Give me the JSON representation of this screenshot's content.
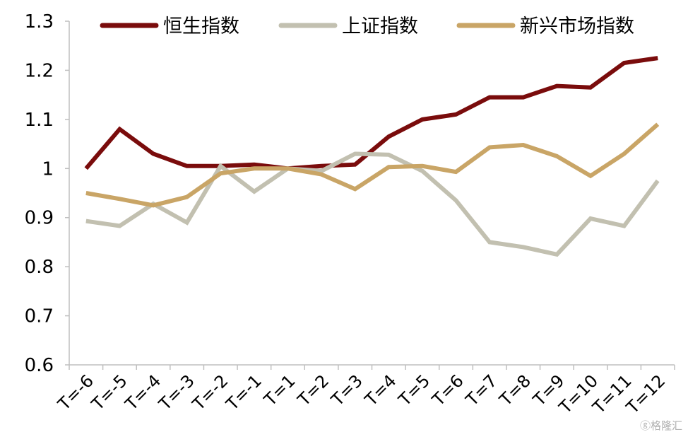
{
  "chart_data": {
    "type": "line",
    "title": "",
    "xlabel": "",
    "ylabel": "",
    "x": [
      "T=-6",
      "T=-5",
      "T=-4",
      "T=-3",
      "T=-2",
      "T=-1",
      "T=1",
      "T=2",
      "T=3",
      "T=4",
      "T=5",
      "T=6",
      "T=7",
      "T=8",
      "T=9",
      "T=10",
      "T=11",
      "T=12"
    ],
    "ylim": [
      0.6,
      1.3
    ],
    "yticks": [
      "0.6",
      "0.7",
      "0.8",
      "0.9",
      "1",
      "1.1",
      "1.2",
      "1.3"
    ],
    "ytick_values": [
      0.6,
      0.7,
      0.8,
      0.9,
      1.0,
      1.1,
      1.2,
      1.3
    ],
    "grid": false,
    "legend": "top",
    "series": [
      {
        "name": "恒生指数",
        "color": "#7a0c0c",
        "values": [
          1.0,
          1.08,
          1.03,
          1.005,
          1.005,
          1.008,
          1.0,
          1.005,
          1.008,
          1.065,
          1.1,
          1.11,
          1.145,
          1.145,
          1.168,
          1.165,
          1.215,
          1.225
        ]
      },
      {
        "name": "上证指数",
        "color": "#c2c0b0",
        "values": [
          0.893,
          0.883,
          0.928,
          0.89,
          1.005,
          0.953,
          1.0,
          0.995,
          1.03,
          1.028,
          0.995,
          0.935,
          0.85,
          0.84,
          0.825,
          0.898,
          0.883,
          0.975
        ]
      },
      {
        "name": "新兴市场指数",
        "color": "#c9a566",
        "values": [
          0.95,
          0.938,
          0.925,
          0.942,
          0.99,
          1.0,
          1.0,
          0.988,
          0.958,
          1.003,
          1.005,
          0.993,
          1.043,
          1.048,
          1.025,
          0.985,
          1.03,
          1.09
        ]
      }
    ]
  },
  "watermark": {
    "text": "ⓖ格隆汇"
  }
}
